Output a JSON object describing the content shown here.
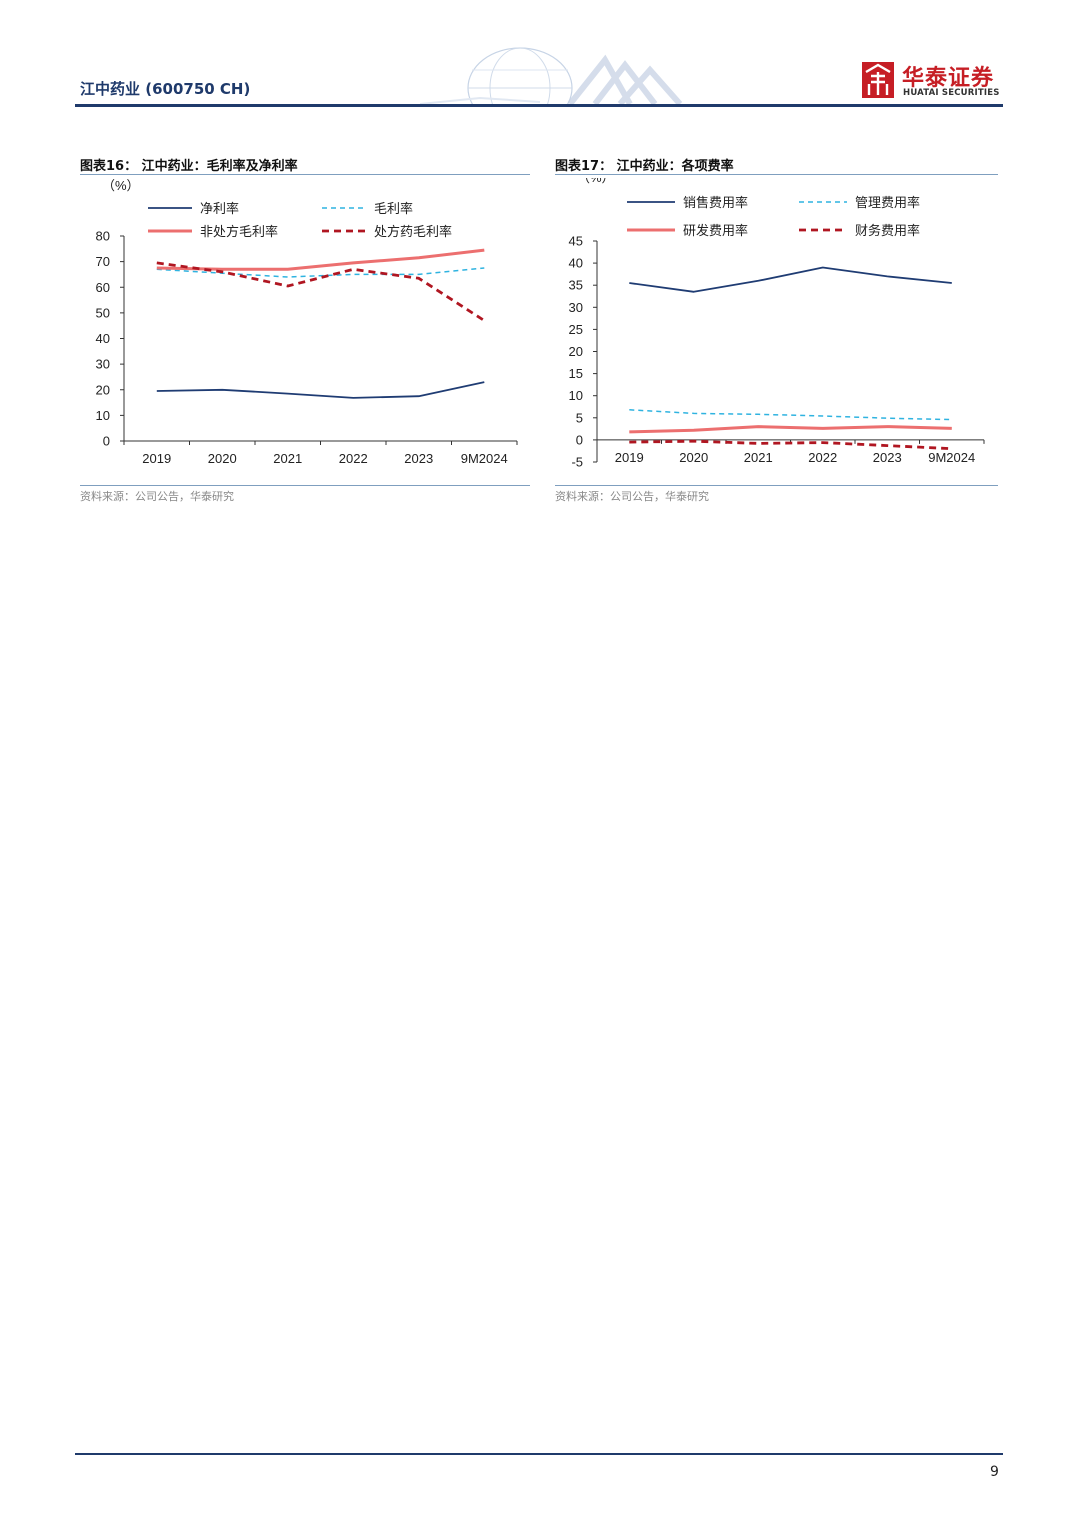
{
  "header": {
    "title": "江中药业  (600750 CH)",
    "logo_cn": "华泰证券",
    "logo_en": "HUATAI SECURITIES"
  },
  "colors": {
    "navy": "#1f3a6b",
    "dark_blue": "#1f3c73",
    "light_blue": "#2fb3e0",
    "salmon": "#ec6f6f",
    "dark_red": "#b01621",
    "brand_red": "#c61e25"
  },
  "figures": [
    {
      "title": "图表16：  江中药业：毛利率及净利率",
      "source": "资料来源：公司公告，华泰研究"
    },
    {
      "title": "图表17：  江中药业：各项费率",
      "source": "资料来源：公司公告，华泰研究"
    }
  ],
  "chart_data": [
    {
      "type": "line",
      "title": "江中药业：毛利率及净利率",
      "ylabel": "（%）",
      "categories": [
        "2019",
        "2020",
        "2021",
        "2022",
        "2023",
        "9M2024"
      ],
      "ylim": [
        0,
        80
      ],
      "yticks": [
        0,
        10,
        20,
        30,
        40,
        50,
        60,
        70,
        80
      ],
      "series": [
        {
          "name": "净利率",
          "style": "solid",
          "color": "#1f3c73",
          "values": [
            19.5,
            20.0,
            18.5,
            16.8,
            17.5,
            23.0
          ]
        },
        {
          "name": "毛利率",
          "style": "dashed",
          "color": "#2fb3e0",
          "values": [
            67.0,
            65.5,
            64.0,
            65.0,
            65.0,
            67.5
          ]
        },
        {
          "name": "非处方毛利率",
          "style": "solid-thick",
          "color": "#ec6f6f",
          "values": [
            67.5,
            67.0,
            67.0,
            69.5,
            71.5,
            74.5
          ]
        },
        {
          "name": "处方药毛利率",
          "style": "dashed-thick",
          "color": "#b01621",
          "values": [
            69.5,
            66.0,
            60.5,
            67.0,
            63.5,
            47.0
          ]
        }
      ]
    },
    {
      "type": "line",
      "title": "江中药业：各项费率",
      "ylabel": "（%）",
      "categories": [
        "2019",
        "2020",
        "2021",
        "2022",
        "2023",
        "9M2024"
      ],
      "ylim": [
        -5,
        45
      ],
      "yticks": [
        -5,
        0,
        5,
        10,
        15,
        20,
        25,
        30,
        35,
        40,
        45
      ],
      "series": [
        {
          "name": "销售费用率",
          "style": "solid",
          "color": "#1f3c73",
          "values": [
            35.5,
            33.5,
            36.0,
            39.0,
            37.0,
            35.5
          ]
        },
        {
          "name": "管理费用率",
          "style": "dashed",
          "color": "#2fb3e0",
          "values": [
            6.8,
            6.0,
            5.8,
            5.4,
            4.9,
            4.6
          ]
        },
        {
          "name": "研发费用率",
          "style": "solid-thick",
          "color": "#ec6f6f",
          "values": [
            1.8,
            2.2,
            3.0,
            2.6,
            3.0,
            2.6
          ]
        },
        {
          "name": "财务费用率",
          "style": "dashed-thick",
          "color": "#b01621",
          "values": [
            -0.5,
            -0.3,
            -0.8,
            -0.6,
            -1.3,
            -2.0
          ]
        }
      ]
    }
  ],
  "page_number": "9"
}
